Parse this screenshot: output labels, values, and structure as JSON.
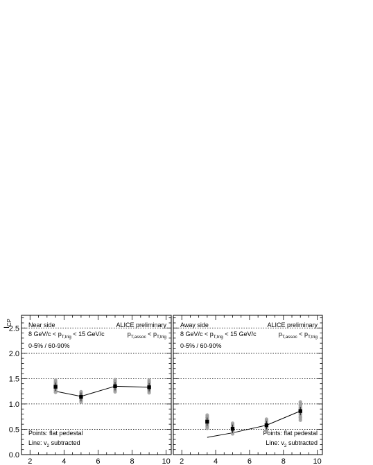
{
  "y_axis_label": "ICP",
  "y_axis_label_main": "I",
  "y_axis_label_sub": "CP",
  "chart_data": [
    {
      "type": "scatter",
      "panel": "left",
      "title": "Near side",
      "label_preliminary": "ALICE preliminary",
      "trigger_text": "8 GeV/c < pT,trig < 15 GeV/c",
      "trigger_parts": {
        "a": "8 GeV/c < p",
        "sub": "T,trig",
        "b": " < 15 GeV/c"
      },
      "assoc_text": "pT,assoc < pT,trig",
      "assoc_parts": {
        "p1": "p",
        "s1": "T,assoc",
        "mid": " < p",
        "s2": "T,trig"
      },
      "centrality_text": "0-5% / 60-90%",
      "points_legend": "Points: flat pedestal",
      "line_legend": "Line: v2 subtracted",
      "line_legend_parts": {
        "a": "Line: v",
        "sub": "2",
        "b": " subtracted"
      },
      "xlim": [
        1.5,
        10.3
      ],
      "ylim": [
        0,
        2.75
      ],
      "x_ticks": [
        2,
        4,
        6,
        8,
        10
      ],
      "y_ticks": [
        0.0,
        0.5,
        1.0,
        1.5,
        2.0,
        2.5
      ],
      "y_tick_labels": [
        "0.0",
        "0.5",
        "1.0",
        "1.5",
        "2.0",
        "2.5"
      ],
      "x_tick_labels": [
        "2",
        "4",
        "6",
        "8",
        "10"
      ],
      "grid_y": [
        0.5,
        1.0,
        1.5,
        2.0,
        2.5
      ],
      "series": [
        {
          "name": "Points: flat pedestal",
          "style": "markers",
          "x": [
            3.5,
            5.0,
            7.0,
            9.0
          ],
          "y": [
            1.34,
            1.14,
            1.35,
            1.33
          ],
          "sys_low": [
            1.23,
            1.04,
            1.24,
            1.22
          ],
          "sys_high": [
            1.47,
            1.24,
            1.48,
            1.47
          ]
        },
        {
          "name": "Line: v2 subtracted",
          "style": "line",
          "x": [
            3.5,
            5.0,
            7.0,
            9.0
          ],
          "y": [
            1.25,
            1.15,
            1.35,
            1.33
          ]
        }
      ]
    },
    {
      "type": "scatter",
      "panel": "right",
      "title": "Away side",
      "label_preliminary": "ALICE preliminary",
      "trigger_text": "8 GeV/c < pT,trig < 15 GeV/c",
      "trigger_parts": {
        "a": "8 GeV/c < p",
        "sub": "T,trig",
        "b": " < 15 GeV/c"
      },
      "assoc_text": "pT,assoc < pT,trig",
      "assoc_parts": {
        "p1": "p",
        "s1": "T,assoc",
        "mid": " < p",
        "s2": "T,trig"
      },
      "centrality_text": "0-5% / 60-90%",
      "points_legend": "Points: flat pedestal",
      "line_legend": "Line: v2 subtracted",
      "line_legend_parts": {
        "a": "Line: v",
        "sub": "2",
        "b": " subtracted"
      },
      "xlim": [
        1.5,
        10.3
      ],
      "ylim": [
        0,
        2.75
      ],
      "x_ticks": [
        2,
        4,
        6,
        8,
        10
      ],
      "x_tick_labels": [
        "2",
        "4",
        "6",
        "8",
        "10"
      ],
      "grid_y": [
        0.5,
        1.0,
        1.5,
        2.0,
        2.5
      ],
      "series": [
        {
          "name": "Points: flat pedestal",
          "style": "markers",
          "x": [
            3.5,
            5.0,
            7.0,
            9.0
          ],
          "y": [
            0.65,
            0.51,
            0.58,
            0.86
          ],
          "sys_low": [
            0.52,
            0.41,
            0.45,
            0.68
          ],
          "sys_high": [
            0.78,
            0.62,
            0.7,
            1.04
          ]
        },
        {
          "name": "Line: v2 subtracted",
          "style": "line",
          "x": [
            3.5,
            5.0,
            7.0,
            9.0
          ],
          "y": [
            0.34,
            0.43,
            0.58,
            0.86
          ]
        }
      ]
    }
  ]
}
